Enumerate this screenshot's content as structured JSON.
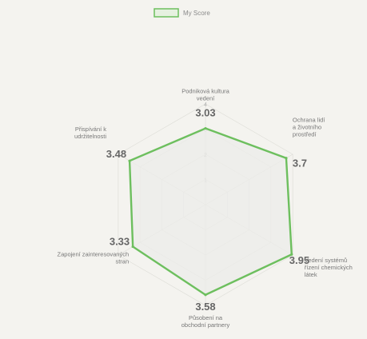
{
  "chart_data": {
    "type": "radar",
    "legend": {
      "label": "My Score",
      "color": "#6dbf5e",
      "placement": "top-center"
    },
    "series": [
      {
        "name": "My Score",
        "values": [
          3.03,
          3.7,
          3.95,
          3.58,
          3.33,
          3.48
        ]
      }
    ],
    "axes": [
      {
        "label": [
          "Podniková kultura",
          "vedení"
        ],
        "value_label": "3.03"
      },
      {
        "label": [
          "Ochrana lidí",
          "a životního",
          "prostředí"
        ],
        "value_label": "3.7"
      },
      {
        "label": [
          "Vedení systémů",
          "řízení chemických",
          "látek"
        ],
        "value_label": "3.95"
      },
      {
        "label": [
          "Působení na",
          "obchodní partnery"
        ],
        "value_label": "3.58"
      },
      {
        "label": [
          "Zapojení zainteresovaných",
          "stran"
        ],
        "value_label": "3.33"
      },
      {
        "label": [
          "Přispívání k",
          "udržitelnosti"
        ],
        "value_label": "3.48"
      }
    ],
    "range": [
      0,
      4
    ],
    "ticks": [
      "1",
      "2",
      "3",
      "4"
    ],
    "colors": {
      "stroke": "#6dbf5e",
      "fill": "#ececea",
      "grid": "#dcdcd6"
    }
  }
}
